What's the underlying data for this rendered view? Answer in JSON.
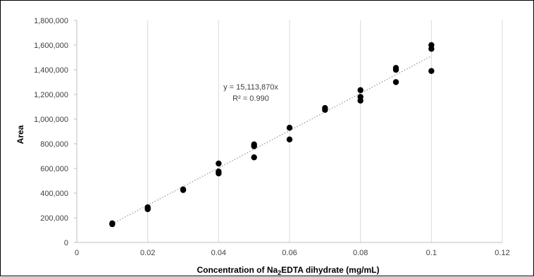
{
  "chart_data": {
    "type": "scatter",
    "xlabel_parts": [
      "Concentration of Na",
      "2",
      "EDTA dihydrate (mg/mL)"
    ],
    "ylabel": "Area",
    "xlim": [
      0,
      0.12
    ],
    "ylim": [
      0,
      1800000
    ],
    "x_ticks": [
      0,
      0.02,
      0.04,
      0.06,
      0.08,
      0.1,
      0.12
    ],
    "x_tick_labels": [
      "0",
      "0.02",
      "0.04",
      "0.06",
      "0.08",
      "0.1",
      "0.12"
    ],
    "y_ticks": [
      0,
      200000,
      400000,
      600000,
      800000,
      1000000,
      1200000,
      1400000,
      1600000,
      1800000
    ],
    "y_tick_labels": [
      "0",
      "200,000",
      "400,000",
      "600,000",
      "800,000",
      "1,000,000",
      "1,200,000",
      "1,400,000",
      "1,600,000",
      "1,800,000"
    ],
    "grid": "vertical",
    "trendline": {
      "slope": 15113870,
      "intercept": 0,
      "style": "dotted"
    },
    "equation_text": "y = 15,113,870x",
    "r2_text": "R² = 0.990",
    "marker_color": "#000000",
    "points": [
      {
        "x": 0.01,
        "y": 155000
      },
      {
        "x": 0.01,
        "y": 148000
      },
      {
        "x": 0.02,
        "y": 285000
      },
      {
        "x": 0.02,
        "y": 275000
      },
      {
        "x": 0.02,
        "y": 270000
      },
      {
        "x": 0.03,
        "y": 430000
      },
      {
        "x": 0.03,
        "y": 425000
      },
      {
        "x": 0.04,
        "y": 640000
      },
      {
        "x": 0.04,
        "y": 575000
      },
      {
        "x": 0.04,
        "y": 560000
      },
      {
        "x": 0.05,
        "y": 795000
      },
      {
        "x": 0.05,
        "y": 780000
      },
      {
        "x": 0.05,
        "y": 690000
      },
      {
        "x": 0.06,
        "y": 930000
      },
      {
        "x": 0.06,
        "y": 835000
      },
      {
        "x": 0.07,
        "y": 1090000
      },
      {
        "x": 0.07,
        "y": 1075000
      },
      {
        "x": 0.08,
        "y": 1235000
      },
      {
        "x": 0.08,
        "y": 1180000
      },
      {
        "x": 0.08,
        "y": 1150000
      },
      {
        "x": 0.09,
        "y": 1415000
      },
      {
        "x": 0.09,
        "y": 1400000
      },
      {
        "x": 0.09,
        "y": 1300000
      },
      {
        "x": 0.1,
        "y": 1600000
      },
      {
        "x": 0.1,
        "y": 1570000
      },
      {
        "x": 0.1,
        "y": 1390000
      }
    ]
  }
}
